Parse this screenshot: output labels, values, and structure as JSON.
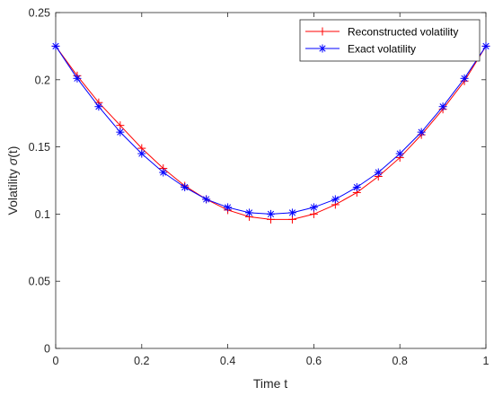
{
  "chart_data": {
    "type": "line",
    "xlabel": "Time t",
    "ylabel_prefix": "Volatility ",
    "ylabel_symbol": "σ",
    "ylabel_suffix": "(t)",
    "xlim": [
      0,
      1
    ],
    "ylim": [
      0,
      0.25
    ],
    "x_ticks": [
      0,
      0.2,
      0.4,
      0.6,
      0.8,
      1
    ],
    "x_tick_labels": [
      "0",
      "0.2",
      "0.4",
      "0.6",
      "0.8",
      "1"
    ],
    "y_ticks": [
      0,
      0.05,
      0.1,
      0.15,
      0.2,
      0.25
    ],
    "y_tick_labels": [
      "0",
      "0.05",
      "0.1",
      "0.15",
      "0.2",
      "0.25"
    ],
    "grid": false,
    "legend_position": "top-right",
    "x": [
      0,
      0.05,
      0.1,
      0.15,
      0.2,
      0.25,
      0.3,
      0.35,
      0.4,
      0.45,
      0.5,
      0.55,
      0.6,
      0.65,
      0.7,
      0.75,
      0.8,
      0.85,
      0.9,
      0.95,
      1
    ],
    "series": [
      {
        "name": "Reconstructed volatility",
        "color": "#ff0000",
        "marker": "plus",
        "values": [
          0.225,
          0.203,
          0.183,
          0.166,
          0.149,
          0.134,
          0.121,
          0.111,
          0.103,
          0.098,
          0.096,
          0.096,
          0.1,
          0.107,
          0.116,
          0.128,
          0.142,
          0.159,
          0.178,
          0.199,
          0.225
        ]
      },
      {
        "name": "Exact volatility",
        "color": "#0000ff",
        "marker": "asterisk",
        "values": [
          0.225,
          0.201,
          0.18,
          0.161,
          0.145,
          0.131,
          0.12,
          0.111,
          0.105,
          0.101,
          0.1,
          0.101,
          0.105,
          0.111,
          0.12,
          0.131,
          0.145,
          0.161,
          0.18,
          0.201,
          0.225
        ]
      }
    ]
  }
}
